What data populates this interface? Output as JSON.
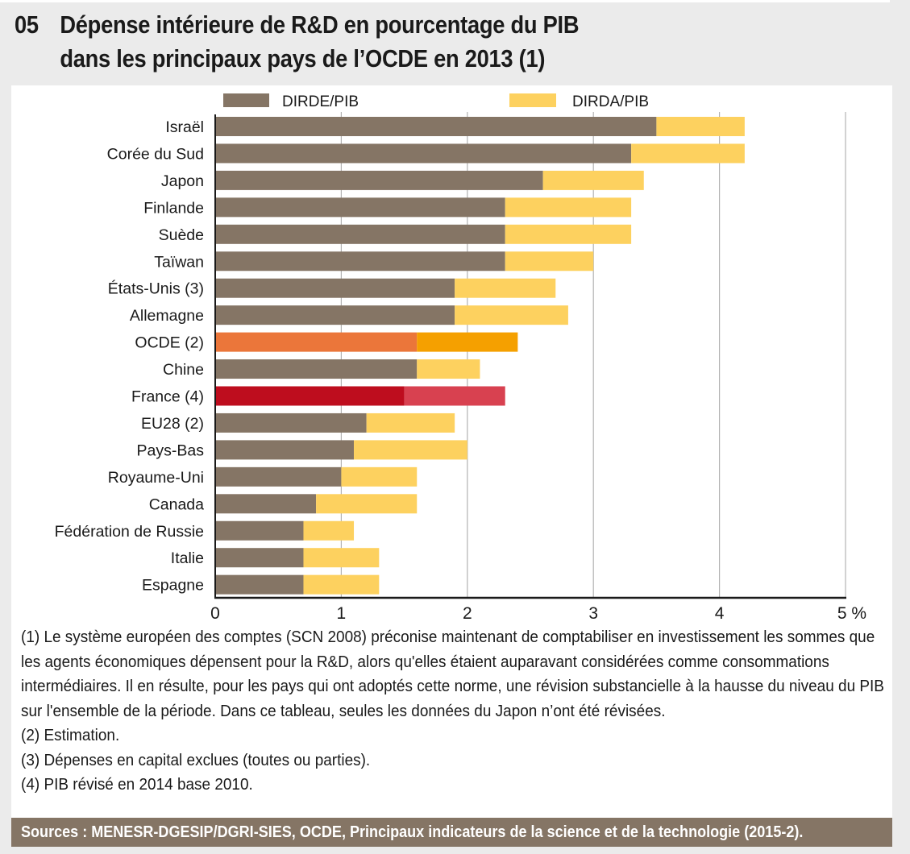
{
  "figure": {
    "number": "05",
    "title_line1": "Dépense intérieure de R&D en pourcentage du PIB",
    "title_line2": "dans les principaux pays de l’OCDE en 2013 (1)"
  },
  "footnotes": [
    "(1) Le système européen des comptes (SCN 2008) préconise maintenant de comptabiliser en investissement les sommes que les agents économiques dépensent pour la R&D, alors qu'elles étaient auparavant considérées comme consommations intermédiaires. Il en résulte, pour les pays qui ont adoptés cette norme, une révision substancielle à la hausse du niveau du PIB sur l'ensemble de la période. Dans ce tableau, seules les données du Japon n’ont été révisées.",
    "(2) Estimation.",
    "(3) Dépenses en capital exclues (toutes ou parties).",
    "(4) PIB révisé en 2014 base 2010."
  ],
  "sources": "Sources : MENESR-DGESIP/DGRI-SIES, OCDE, Principaux indicateurs de la science et de la technologie (2015-2).",
  "colors": {
    "dirde": "#857565",
    "dirda": "#fdd15f",
    "ocde_dirde": "#eb763a",
    "ocde_dirda": "#f5a000",
    "france_dirde": "#be0d1e",
    "france_dirda": "#d84150",
    "grid": "#b3b3b3",
    "axis": "#1a1a1a"
  },
  "chart_data": {
    "type": "bar",
    "orientation": "horizontal",
    "stacked": true,
    "title": "Dépense intérieure de R&D en pourcentage du PIB dans les principaux pays de l’OCDE en 2013 (1)",
    "xlabel": "",
    "ylabel": "",
    "unit": "%",
    "xlim": [
      0,
      5
    ],
    "xticks": [
      0,
      1,
      2,
      3,
      4,
      5
    ],
    "xtick_labels": [
      "0",
      "1",
      "2",
      "3",
      "4",
      "5 %"
    ],
    "grid": "vertical",
    "legend": {
      "placement": "top",
      "entries": [
        "DIRDE/PIB",
        "DIRDA/PIB"
      ]
    },
    "categories": [
      "Israël",
      "Corée du Sud",
      "Japon",
      "Finlande",
      "Suède",
      "Taïwan",
      "États-Unis (3)",
      "Allemagne",
      "OCDE (2)",
      "Chine",
      "France (4)",
      "EU28 (2)",
      "Pays-Bas",
      "Royaume-Uni",
      "Canada",
      "Fédération de Russie",
      "Italie",
      "Espagne"
    ],
    "highlight": {
      "OCDE (2)": "ocde",
      "France (4)": "france"
    },
    "series": [
      {
        "name": "DIRDE/PIB",
        "values": [
          3.5,
          3.3,
          2.6,
          2.3,
          2.3,
          2.3,
          1.9,
          1.9,
          1.6,
          1.6,
          1.5,
          1.2,
          1.1,
          1.0,
          0.8,
          0.7,
          0.7,
          0.7
        ]
      },
      {
        "name": "DIRDA/PIB",
        "values": [
          0.7,
          0.9,
          0.8,
          1.0,
          1.0,
          0.7,
          0.8,
          0.9,
          0.8,
          0.5,
          0.8,
          0.7,
          0.9,
          0.6,
          0.8,
          0.4,
          0.6,
          0.6
        ]
      }
    ],
    "totals": [
      4.2,
      4.2,
      3.4,
      3.3,
      3.3,
      3.0,
      2.7,
      2.8,
      2.4,
      2.1,
      2.3,
      1.9,
      2.0,
      1.6,
      1.6,
      1.1,
      1.3,
      1.3
    ]
  }
}
